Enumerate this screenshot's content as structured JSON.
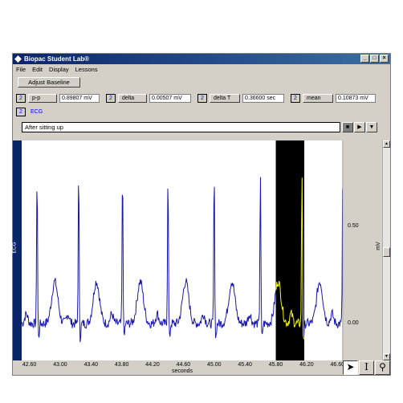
{
  "window": {
    "title": "Biopac Student Lab®"
  },
  "menu": [
    "File",
    "Edit",
    "Display",
    "Lessons"
  ],
  "toolbar": {
    "adjust_baseline": "Adjust Baseline"
  },
  "measurements": [
    {
      "channel": "2",
      "type": "p-p",
      "value": "0.89807 mV"
    },
    {
      "channel": "2",
      "type": "delta",
      "value": "0.00507 mV"
    },
    {
      "channel": "2",
      "type": "delta T",
      "value": "0.36600 sec"
    },
    {
      "channel": "2",
      "type": "mean",
      "value": "0.10873 mV"
    }
  ],
  "channel": {
    "number": "2",
    "label": "ECG"
  },
  "journal": {
    "text": "After sitting up"
  },
  "plot": {
    "channel_strip": "ECG",
    "y_unit": "mV",
    "y_ticks": [
      "0.50",
      "0.00"
    ],
    "x_label": "seconds",
    "x_ticks": [
      "42.60",
      "43.00",
      "43.40",
      "43.80",
      "44.20",
      "44.60",
      "45.00",
      "45.40",
      "45.80",
      "46.20",
      "46.60"
    ],
    "selection_seconds": [
      45.8,
      46.17
    ],
    "trace_color": "#1818b0",
    "selection_trace_color": "#f0f000",
    "r_peak_times": [
      42.7,
      43.24,
      43.81,
      44.4,
      45.0,
      45.6,
      46.14,
      46.67
    ]
  },
  "tools": [
    "arrow-icon",
    "ibeam-icon",
    "zoom-icon"
  ]
}
